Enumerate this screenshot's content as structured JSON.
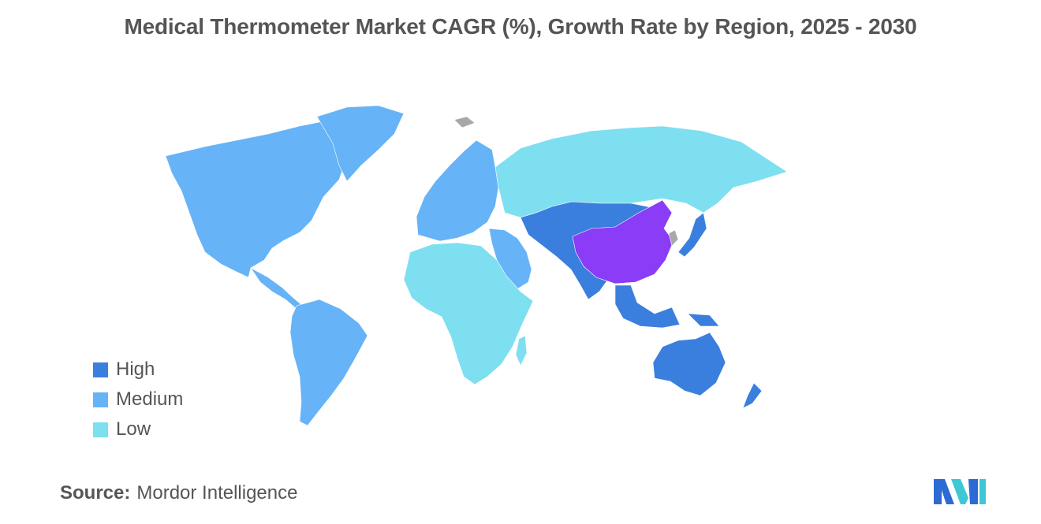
{
  "title": "Medical Thermometer Market CAGR (%), Growth Rate by Region, 2025 - 2030",
  "legend": {
    "items": [
      {
        "label": "High",
        "color": "#3b7fde"
      },
      {
        "label": "Medium",
        "color": "#66b3f7"
      },
      {
        "label": "Low",
        "color": "#7edff0"
      }
    ]
  },
  "highlight_color": "#8a3cf7",
  "nodata_color": "#a8a8a8",
  "source": {
    "label": "Source:",
    "value": "Mordor Intelligence"
  },
  "logo": {
    "icon": "mordor-intelligence-logo",
    "colors": [
      "#2d6bd4",
      "#3fc7d6"
    ]
  }
}
